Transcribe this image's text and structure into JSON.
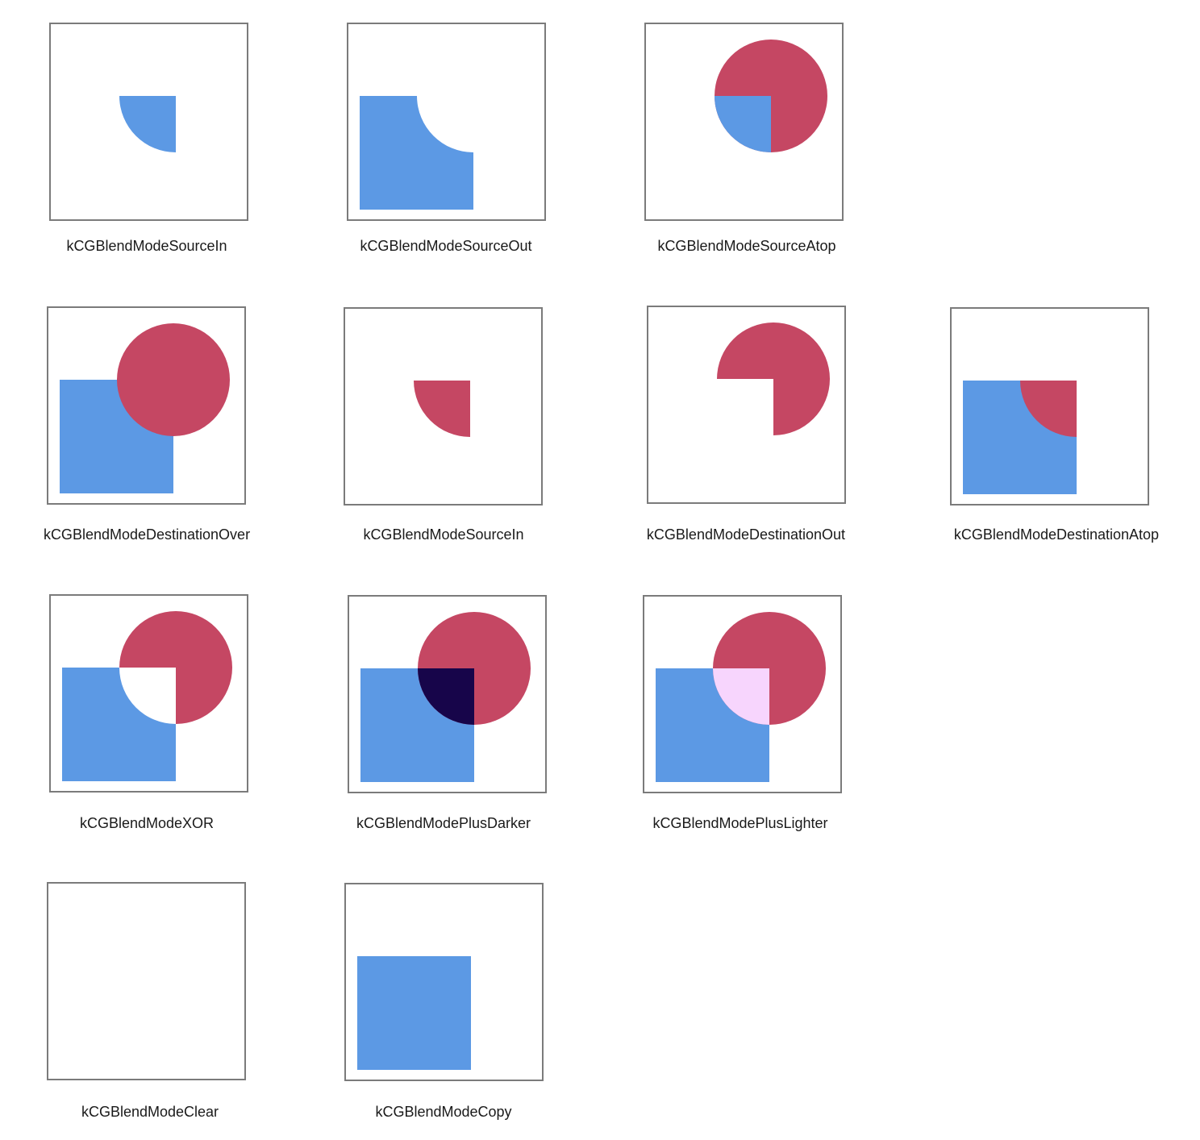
{
  "colors": {
    "source_blue": "#5c99e4",
    "destination_red": "#c54763",
    "plus_darker_overlap": "#17054a",
    "plus_lighter_overlap": "#f7d5fd",
    "box_border": "#7b7b7b",
    "background": "#ffffff"
  },
  "panels": [
    {
      "label": "kCGBlendModeSourceIn",
      "mode": "source-in-blue"
    },
    {
      "label": "kCGBlendModeSourceOut",
      "mode": "source-out"
    },
    {
      "label": "kCGBlendModeSourceAtop",
      "mode": "source-atop"
    },
    {
      "label": "kCGBlendModeDestinationOver",
      "mode": "destination-over"
    },
    {
      "label": "kCGBlendModeSourceIn",
      "mode": "source-in-red"
    },
    {
      "label": "kCGBlendModeDestinationOut",
      "mode": "destination-out"
    },
    {
      "label": "kCGBlendModeDestinationAtop",
      "mode": "destination-atop"
    },
    {
      "label": "kCGBlendModeXOR",
      "mode": "xor"
    },
    {
      "label": "kCGBlendModePlusDarker",
      "mode": "plus-darker"
    },
    {
      "label": "kCGBlendModePlusLighter",
      "mode": "plus-lighter"
    },
    {
      "label": "kCGBlendModeClear",
      "mode": "clear"
    },
    {
      "label": "kCGBlendModeCopy",
      "mode": "copy"
    }
  ]
}
